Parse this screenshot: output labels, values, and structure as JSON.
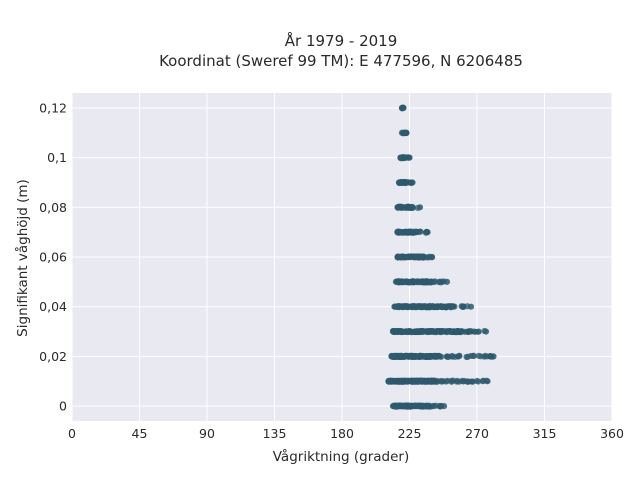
{
  "chart_data": {
    "type": "scatter",
    "title": "År 1979 - 2019",
    "subtitle": "Koordinat (Sweref 99 TM): E 477596, N 6206485",
    "xlabel": "Vågriktning (grader)",
    "ylabel": "Signifikant våghöjd (m)",
    "xlim": [
      0,
      360
    ],
    "ylim": [
      -0.006,
      0.126
    ],
    "xticks": [
      0,
      45,
      90,
      135,
      180,
      225,
      270,
      315,
      360
    ],
    "xtick_labels": [
      "0",
      "45",
      "90",
      "135",
      "180",
      "225",
      "270",
      "315",
      "360"
    ],
    "yticks": [
      0,
      0.02,
      0.04,
      0.06,
      0.08,
      0.1,
      0.12
    ],
    "ytick_labels": [
      "0",
      "0,02",
      "0,04",
      "0,06",
      "0,08",
      "0,1",
      "0,12"
    ],
    "grid": true,
    "background": "#e9e9f2",
    "point_color": "#2f5a6e",
    "bands": [
      {
        "y": 0.0,
        "xmin": 214,
        "xmax": 248,
        "x_dense_end": 240
      },
      {
        "y": 0.01,
        "xmin": 211,
        "xmax": 277,
        "x_dense_end": 242
      },
      {
        "y": 0.02,
        "xmin": 213,
        "xmax": 281,
        "x_dense_end": 245
      },
      {
        "y": 0.03,
        "xmin": 214,
        "xmax": 276,
        "x_dense_end": 260
      },
      {
        "y": 0.04,
        "xmin": 215,
        "xmax": 266,
        "x_dense_end": 255
      },
      {
        "y": 0.05,
        "xmin": 216,
        "xmax": 250,
        "x_dense_end": 240
      },
      {
        "y": 0.06,
        "xmin": 217,
        "xmax": 240,
        "x_dense_end": 235
      },
      {
        "y": 0.07,
        "xmin": 217,
        "xmax": 237,
        "x_dense_end": 230
      },
      {
        "y": 0.08,
        "xmin": 217,
        "xmax": 232,
        "x_dense_end": 228
      },
      {
        "y": 0.09,
        "xmin": 218,
        "xmax": 227,
        "x_dense_end": 225
      },
      {
        "y": 0.1,
        "xmin": 219,
        "xmax": 225,
        "x_dense_end": 224
      },
      {
        "y": 0.11,
        "xmin": 220,
        "xmax": 223,
        "x_dense_end": 223
      },
      {
        "y": 0.12,
        "xmin": 220,
        "xmax": 221,
        "x_dense_end": 221
      }
    ]
  }
}
